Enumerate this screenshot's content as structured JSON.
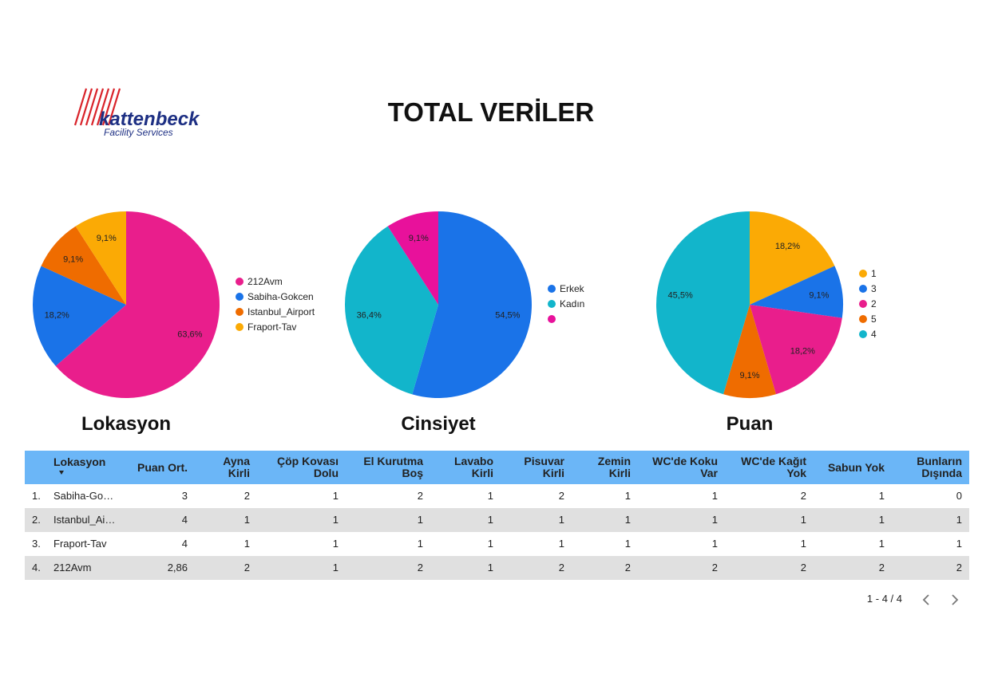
{
  "header": {
    "title": "TOTAL VERİLER",
    "logo": "kattenbeck",
    "logo_sub": "Facility Services"
  },
  "chart_data": [
    {
      "type": "pie",
      "title": "Lokasyon",
      "categories": [
        "212Avm",
        "Sabiha-Gokcen",
        "Istanbul_Airport",
        "Fraport-Tav"
      ],
      "values": [
        63.6,
        18.2,
        9.1,
        9.1
      ],
      "value_labels": [
        "63,6%",
        "18,2%",
        "9,1%",
        "9,1%"
      ],
      "colors": [
        "#e91e8c",
        "#1a73e8",
        "#ef6c00",
        "#fbaa05"
      ]
    },
    {
      "type": "pie",
      "title": "Cinsiyet",
      "categories": [
        "Erkek",
        "Kadın",
        null
      ],
      "values": [
        54.5,
        36.4,
        9.1
      ],
      "value_labels": [
        "54,5%",
        "36,4%",
        "9,1%"
      ],
      "colors": [
        "#1a73e8",
        "#12b5cb",
        "#e8119b"
      ]
    },
    {
      "type": "pie",
      "title": "Puan",
      "categories": [
        "1",
        "3",
        "2",
        "5",
        "4"
      ],
      "values": [
        18.2,
        9.1,
        18.2,
        9.1,
        45.5
      ],
      "value_labels": [
        "18,2%",
        "9,1%",
        "18,2%",
        "9,1%",
        "45,5%"
      ],
      "colors": [
        "#fbaa05",
        "#1a73e8",
        "#e91e8c",
        "#ef6c00",
        "#12b5cb"
      ]
    }
  ],
  "table": {
    "columns": [
      "Lokasyon",
      "Puan Ort.",
      "Ayna Kirli",
      "Çöp Kovası Dolu",
      "El Kurutma Boş",
      "Lavabo Kirli",
      "Pisuvar Kirli",
      "Zemin Kirli",
      "WC'de Koku Var",
      "WC'de Kağıt Yok",
      "Sabun Yok",
      "Bunların Dışında"
    ],
    "rows": [
      {
        "index": "1.",
        "cells": [
          "Sabiha-Go…",
          3,
          2,
          1,
          2,
          1,
          2,
          1,
          1,
          2,
          1,
          0
        ]
      },
      {
        "index": "2.",
        "cells": [
          "Istanbul_Ai…",
          4,
          1,
          1,
          1,
          1,
          1,
          1,
          1,
          1,
          1,
          1
        ]
      },
      {
        "index": "3.",
        "cells": [
          "Fraport-Tav",
          4,
          1,
          1,
          1,
          1,
          1,
          1,
          1,
          1,
          1,
          1
        ]
      },
      {
        "index": "4.",
        "cells": [
          "212Avm",
          "2,86",
          2,
          1,
          2,
          1,
          2,
          2,
          2,
          2,
          2,
          2
        ]
      }
    ],
    "pagination": "1 - 4 / 4"
  }
}
